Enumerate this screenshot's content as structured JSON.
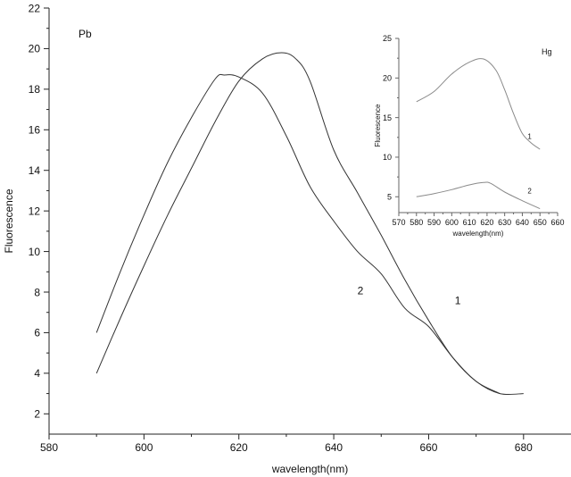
{
  "chart_data": [
    {
      "type": "line",
      "title": "",
      "annotation": "Pb",
      "xlabel": "wavelength(nm)",
      "ylabel": "Fluorescence",
      "xlim": [
        580,
        690
      ],
      "ylim": [
        1,
        22
      ],
      "xticks": [
        580,
        600,
        620,
        640,
        660,
        680
      ],
      "yticks": [
        2,
        4,
        6,
        8,
        10,
        12,
        14,
        16,
        18,
        20,
        22
      ],
      "grid": false,
      "series": [
        {
          "name": "1",
          "x": [
            590,
            595,
            600,
            605,
            610,
            615,
            620,
            625,
            629,
            632,
            635,
            640,
            645,
            650,
            655,
            660,
            665,
            670,
            675,
            680
          ],
          "y": [
            4.0,
            6.7,
            9.3,
            11.8,
            14.1,
            16.4,
            18.4,
            19.5,
            19.8,
            19.5,
            18.4,
            15.0,
            12.9,
            10.8,
            8.6,
            6.6,
            4.8,
            3.6,
            3.0,
            3.0
          ]
        },
        {
          "name": "2",
          "x": [
            590,
            595,
            600,
            605,
            610,
            615,
            617,
            620,
            625,
            630,
            635,
            640,
            645,
            650,
            655,
            660,
            665,
            670,
            675
          ],
          "y": [
            6.0,
            9.0,
            11.8,
            14.4,
            16.6,
            18.5,
            18.7,
            18.6,
            17.8,
            15.7,
            13.2,
            11.5,
            10.0,
            8.9,
            7.2,
            6.3,
            4.8,
            3.6,
            3.0
          ]
        }
      ]
    },
    {
      "type": "line",
      "title": "",
      "annotation": "Hg",
      "xlabel": "wavelength(nm)",
      "ylabel": "Fluorescence",
      "xlim": [
        570,
        660
      ],
      "ylim": [
        3,
        25
      ],
      "xticks": [
        570,
        580,
        590,
        600,
        610,
        620,
        630,
        640,
        650,
        660
      ],
      "yticks": [
        5,
        10,
        15,
        20,
        25
      ],
      "grid": false,
      "series": [
        {
          "name": "1",
          "x": [
            580,
            590,
            600,
            610,
            618,
            625,
            630,
            635,
            640,
            645,
            650
          ],
          "y": [
            17.0,
            18.3,
            20.5,
            22.0,
            22.4,
            21.0,
            18.5,
            15.5,
            13.0,
            11.8,
            11.0
          ]
        },
        {
          "name": "2",
          "x": [
            580,
            590,
            600,
            610,
            618,
            622,
            630,
            640,
            650
          ],
          "y": [
            5.0,
            5.4,
            5.9,
            6.5,
            6.8,
            6.7,
            5.6,
            4.5,
            3.5
          ]
        }
      ]
    }
  ]
}
